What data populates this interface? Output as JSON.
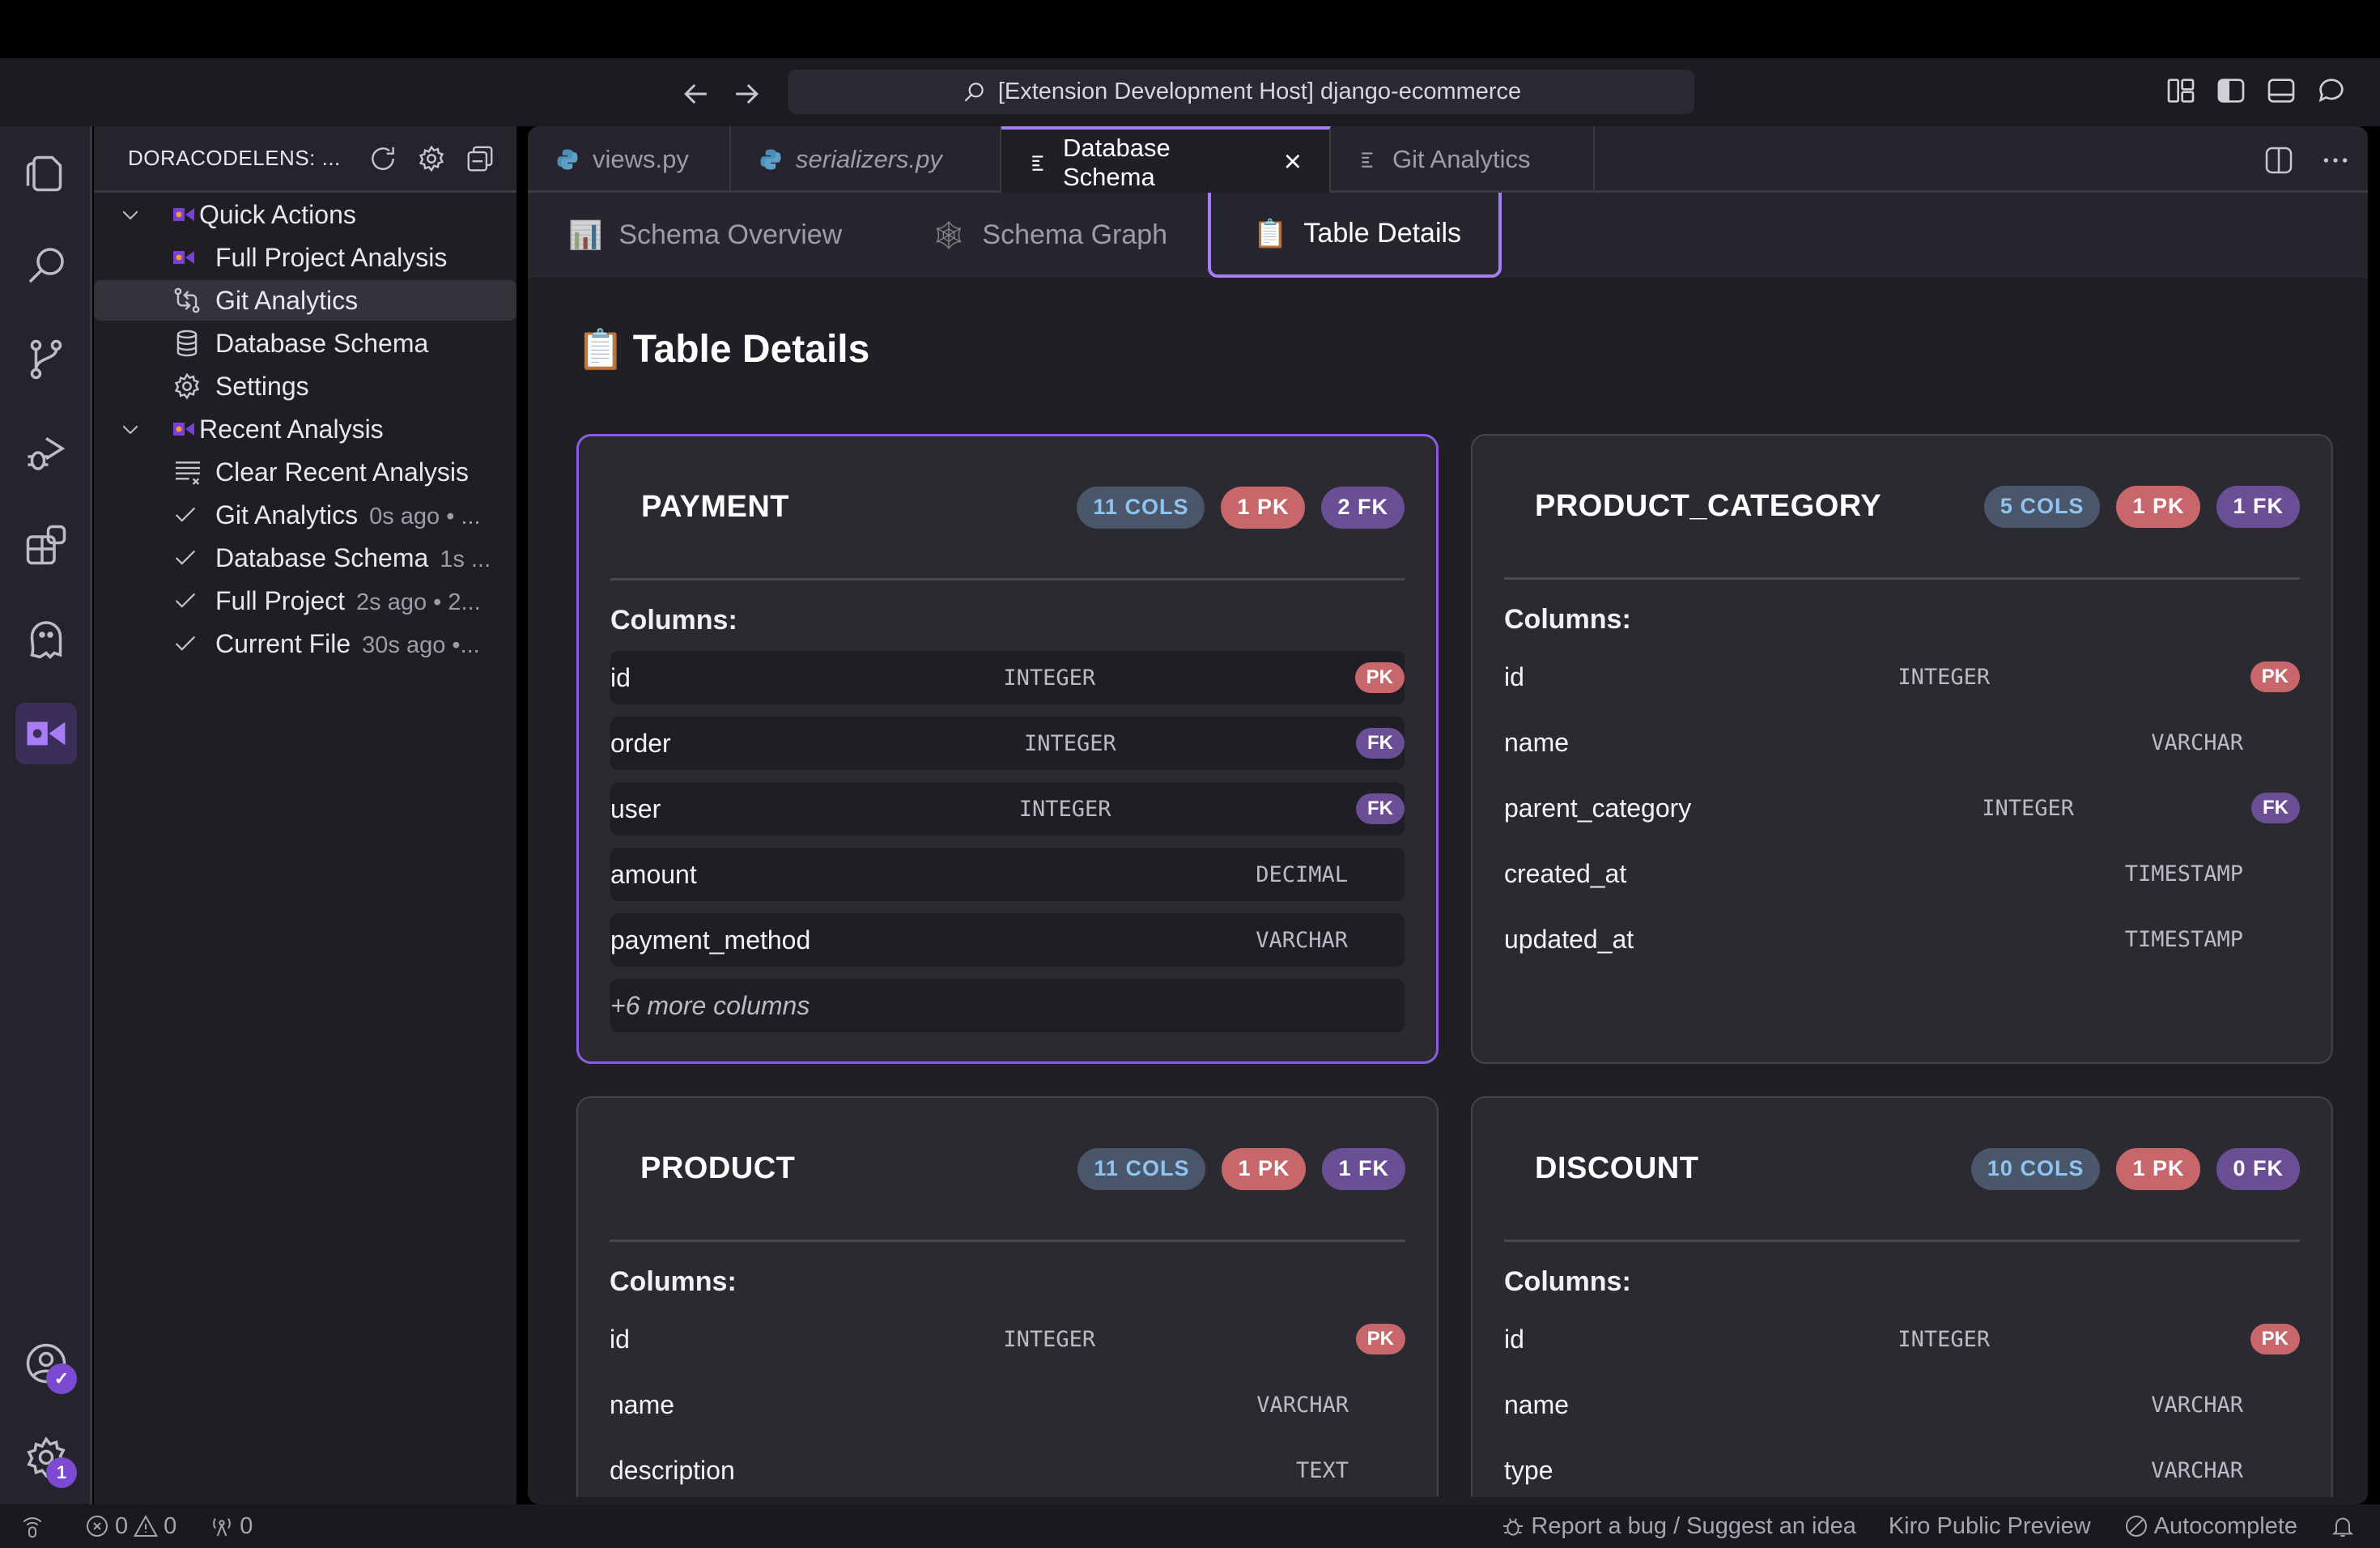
{
  "window": {
    "title": "[Extension Development Host] django-ecommerce"
  },
  "activity_bar": {
    "icons": [
      "explorer-icon",
      "search-icon",
      "source-control-icon",
      "run-debug-icon",
      "extensions-icon",
      "ghost-icon",
      "doracodelens-icon"
    ],
    "accounts_badge": "✓",
    "settings_badge": "1"
  },
  "sidebar": {
    "title": "DORACODELENS: ...",
    "sections": [
      {
        "label": "Quick Actions",
        "items": [
          {
            "label": "Full Project Analysis",
            "icon": "doracodelens-icon"
          },
          {
            "label": "Git Analytics",
            "icon": "git-compare-icon",
            "selected": true
          },
          {
            "label": "Database Schema",
            "icon": "database-icon"
          },
          {
            "label": "Settings",
            "icon": "gear-icon"
          }
        ]
      },
      {
        "label": "Recent Analysis",
        "items": [
          {
            "label": "Clear Recent Analysis",
            "icon": "clear-list-icon",
            "meta": ""
          },
          {
            "label": "Git Analytics",
            "icon": "check-icon",
            "meta": "0s ago • ..."
          },
          {
            "label": "Database Schema",
            "icon": "check-icon",
            "meta": "1s ..."
          },
          {
            "label": "Full Project",
            "icon": "check-icon",
            "meta": "2s ago • 2..."
          },
          {
            "label": "Current File",
            "icon": "check-icon",
            "meta": "30s ago •..."
          }
        ]
      }
    ]
  },
  "tabs": [
    {
      "label": "views.py",
      "icon": "python-icon",
      "italic": false
    },
    {
      "label": "serializers.py",
      "icon": "python-icon",
      "italic": true
    },
    {
      "label": "Database Schema",
      "icon": "preview-icon",
      "active": true,
      "close": "×"
    },
    {
      "label": "Git Analytics",
      "icon": "preview-icon"
    }
  ],
  "subtabs": [
    {
      "label": "Schema Overview",
      "icon": "📊"
    },
    {
      "label": "Schema Graph",
      "icon": "🕸"
    },
    {
      "label": "Table Details",
      "icon": "📋",
      "active": true
    }
  ],
  "main": {
    "heading_icon": "📋",
    "heading": "Table Details",
    "columns_label": "Columns:",
    "tables": [
      {
        "name": "PAYMENT",
        "cols": "11 COLS",
        "pk": "1 PK",
        "fk": "2 FK",
        "hovered": true,
        "columns": [
          {
            "name": "id",
            "type": "INTEGER",
            "key": "PK"
          },
          {
            "name": "order",
            "type": "INTEGER",
            "key": "FK"
          },
          {
            "name": "user",
            "type": "INTEGER",
            "key": "FK"
          },
          {
            "name": "amount",
            "type": "DECIMAL",
            "key": ""
          },
          {
            "name": "payment_method",
            "type": "VARCHAR",
            "key": ""
          }
        ],
        "more": "+6 more columns"
      },
      {
        "name": "PRODUCT_CATEGORY",
        "cols": "5 COLS",
        "pk": "1 PK",
        "fk": "1 FK",
        "columns": [
          {
            "name": "id",
            "type": "INTEGER",
            "key": "PK"
          },
          {
            "name": "name",
            "type": "VARCHAR",
            "key": ""
          },
          {
            "name": "parent_category",
            "type": "INTEGER",
            "key": "FK"
          },
          {
            "name": "created_at",
            "type": "TIMESTAMP",
            "key": ""
          },
          {
            "name": "updated_at",
            "type": "TIMESTAMP",
            "key": ""
          }
        ],
        "more": ""
      },
      {
        "name": "PRODUCT",
        "cols": "11 COLS",
        "pk": "1 PK",
        "fk": "1 FK",
        "columns": [
          {
            "name": "id",
            "type": "INTEGER",
            "key": "PK"
          },
          {
            "name": "name",
            "type": "VARCHAR",
            "key": ""
          },
          {
            "name": "description",
            "type": "TEXT",
            "key": ""
          }
        ],
        "more": ""
      },
      {
        "name": "DISCOUNT",
        "cols": "10 COLS",
        "pk": "1 PK",
        "fk": "0 FK",
        "columns": [
          {
            "name": "id",
            "type": "INTEGER",
            "key": "PK"
          },
          {
            "name": "name",
            "type": "VARCHAR",
            "key": ""
          },
          {
            "name": "type",
            "type": "VARCHAR",
            "key": ""
          }
        ],
        "more": ""
      }
    ]
  },
  "statusbar": {
    "errors": "0",
    "warnings": "0",
    "ports": "0",
    "report": "Report a bug / Suggest an idea",
    "preview": "Kiro Public Preview",
    "autocomplete": "Autocomplete"
  },
  "colors": {
    "accent": "#a77cf5",
    "cols_bg": "#4a566a",
    "cols_fg": "#8fc3f0",
    "pk": "#c7666b",
    "fk": "#6b4f96"
  }
}
